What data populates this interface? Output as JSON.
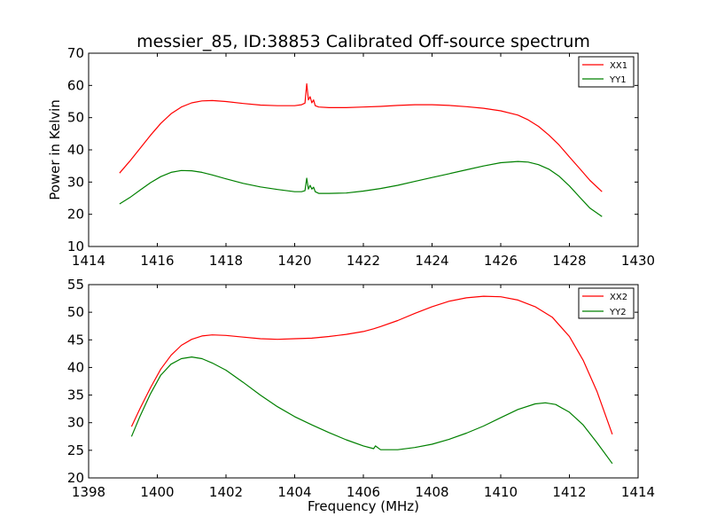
{
  "figure": {
    "title": "messier_85, ID:38853 Calibrated Off-source spectrum"
  },
  "chart_data": [
    {
      "type": "line",
      "xlabel": "",
      "ylabel": "Power in Kelvin",
      "xlim": [
        1414,
        1430
      ],
      "ylim": [
        10,
        70
      ],
      "x_ticks": [
        "1414",
        "1416",
        "1418",
        "1420",
        "1422",
        "1424",
        "1426",
        "1428",
        "1430"
      ],
      "y_ticks": [
        "10",
        "20",
        "30",
        "40",
        "50",
        "60",
        "70"
      ],
      "legend": "top-right",
      "series": [
        {
          "name": "XX1",
          "color": "#ff0000",
          "x": [
            1414.9,
            1415.2,
            1415.5,
            1415.8,
            1416.1,
            1416.4,
            1416.7,
            1417.0,
            1417.3,
            1417.6,
            1418.0,
            1418.5,
            1419.0,
            1419.5,
            1420.0,
            1420.2,
            1420.3,
            1420.35,
            1420.4,
            1420.45,
            1420.5,
            1420.55,
            1420.6,
            1420.7,
            1421.0,
            1421.5,
            1422.0,
            1422.5,
            1423.0,
            1423.5,
            1424.0,
            1424.5,
            1425.0,
            1425.5,
            1426.0,
            1426.5,
            1426.8,
            1427.1,
            1427.4,
            1427.7,
            1428.0,
            1428.3,
            1428.6,
            1428.95
          ],
          "y": [
            32.8,
            36.5,
            40.5,
            44.5,
            48.2,
            51.2,
            53.3,
            54.6,
            55.2,
            55.3,
            55.0,
            54.4,
            53.9,
            53.7,
            53.7,
            54.0,
            54.5,
            60.5,
            55.5,
            56.5,
            54.6,
            55.5,
            53.7,
            53.3,
            53.1,
            53.1,
            53.3,
            53.5,
            53.8,
            54.0,
            54.0,
            53.8,
            53.4,
            52.9,
            52.1,
            50.8,
            49.3,
            47.3,
            44.6,
            41.5,
            37.8,
            34.2,
            30.5,
            27.0
          ]
        },
        {
          "name": "YY1",
          "color": "#008000",
          "x": [
            1414.9,
            1415.2,
            1415.5,
            1415.8,
            1416.1,
            1416.4,
            1416.7,
            1417.0,
            1417.3,
            1417.6,
            1418.0,
            1418.5,
            1419.0,
            1419.5,
            1420.0,
            1420.2,
            1420.3,
            1420.35,
            1420.4,
            1420.45,
            1420.5,
            1420.55,
            1420.6,
            1420.7,
            1421.0,
            1421.5,
            1422.0,
            1422.5,
            1423.0,
            1423.5,
            1424.0,
            1424.5,
            1425.0,
            1425.5,
            1426.0,
            1426.5,
            1426.8,
            1427.1,
            1427.4,
            1427.7,
            1428.0,
            1428.3,
            1428.6,
            1428.95
          ],
          "y": [
            23.2,
            25.2,
            27.5,
            29.8,
            31.7,
            33.0,
            33.6,
            33.5,
            33.0,
            32.2,
            31.0,
            29.6,
            28.5,
            27.7,
            27.0,
            27.0,
            27.3,
            31.2,
            27.8,
            29.0,
            27.8,
            28.4,
            27.0,
            26.5,
            26.5,
            26.6,
            27.2,
            28.0,
            29.0,
            30.2,
            31.4,
            32.6,
            33.8,
            35.0,
            36.0,
            36.4,
            36.2,
            35.4,
            34.0,
            31.8,
            28.8,
            25.3,
            21.9,
            19.3
          ]
        }
      ]
    },
    {
      "type": "line",
      "xlabel": "Frequency (MHz)",
      "ylabel": "",
      "xlim": [
        1398,
        1414
      ],
      "ylim": [
        20,
        55
      ],
      "x_ticks": [
        "1398",
        "1400",
        "1402",
        "1404",
        "1406",
        "1408",
        "1410",
        "1412",
        "1414"
      ],
      "y_ticks": [
        "20",
        "25",
        "30",
        "35",
        "40",
        "45",
        "50",
        "55"
      ],
      "legend": "top-right",
      "series": [
        {
          "name": "XX2",
          "color": "#ff0000",
          "x": [
            1399.25,
            1399.5,
            1399.8,
            1400.1,
            1400.4,
            1400.7,
            1401.0,
            1401.3,
            1401.6,
            1402.0,
            1402.5,
            1403.0,
            1403.5,
            1404.0,
            1404.5,
            1405.0,
            1405.5,
            1406.0,
            1406.3,
            1406.5,
            1407.0,
            1407.5,
            1408.0,
            1408.5,
            1409.0,
            1409.5,
            1410.0,
            1410.5,
            1411.0,
            1411.5,
            1412.0,
            1412.4,
            1412.8,
            1413.25
          ],
          "y": [
            29.3,
            32.6,
            36.3,
            39.7,
            42.2,
            44.0,
            45.1,
            45.7,
            45.9,
            45.8,
            45.5,
            45.2,
            45.1,
            45.2,
            45.3,
            45.6,
            46.0,
            46.5,
            47.0,
            47.4,
            48.5,
            49.8,
            51.0,
            52.0,
            52.6,
            52.9,
            52.8,
            52.2,
            51.0,
            49.1,
            45.6,
            41.3,
            35.7,
            27.9
          ]
        },
        {
          "name": "YY2",
          "color": "#008000",
          "x": [
            1399.25,
            1399.5,
            1399.8,
            1400.1,
            1400.4,
            1400.7,
            1401.0,
            1401.3,
            1401.6,
            1402.0,
            1402.5,
            1403.0,
            1403.5,
            1404.0,
            1404.5,
            1405.0,
            1405.5,
            1406.0,
            1406.3,
            1406.35,
            1406.5,
            1407.0,
            1407.5,
            1408.0,
            1408.5,
            1409.0,
            1409.5,
            1410.0,
            1410.5,
            1411.0,
            1411.3,
            1411.6,
            1412.0,
            1412.4,
            1412.8,
            1413.25
          ],
          "y": [
            27.5,
            31.2,
            35.2,
            38.6,
            40.6,
            41.6,
            41.9,
            41.6,
            40.8,
            39.5,
            37.3,
            35.0,
            32.9,
            31.1,
            29.6,
            28.2,
            26.9,
            25.8,
            25.3,
            25.8,
            25.1,
            25.1,
            25.5,
            26.1,
            27.0,
            28.1,
            29.4,
            30.9,
            32.4,
            33.4,
            33.6,
            33.3,
            31.9,
            29.6,
            26.4,
            22.6
          ]
        }
      ]
    }
  ]
}
